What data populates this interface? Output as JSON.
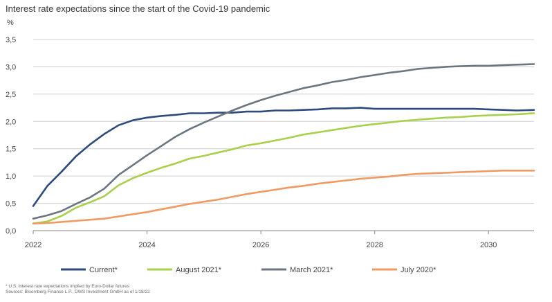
{
  "chart_data": {
    "type": "line",
    "title": "Interest rate expectations since the start of the Covid-19 pandemic",
    "ylabel": "%",
    "xlabel": "",
    "ylim": [
      0,
      3.5
    ],
    "xlim": [
      2022,
      2030.8
    ],
    "grid": true,
    "legend_position": "bottom",
    "y_ticks": [
      "0,0",
      "0,5",
      "1,0",
      "1,5",
      "2,0",
      "2,5",
      "3,0",
      "3,5"
    ],
    "x_ticks": [
      "2022",
      "2024",
      "2026",
      "2028",
      "2030"
    ],
    "series": [
      {
        "name": "Current*",
        "color": "#2e4a7d",
        "x": [
          2022,
          2022.25,
          2022.5,
          2022.75,
          2023,
          2023.25,
          2023.5,
          2023.75,
          2024,
          2024.25,
          2024.5,
          2024.75,
          2025,
          2025.25,
          2025.5,
          2025.75,
          2026,
          2026.25,
          2026.5,
          2026.75,
          2027,
          2027.25,
          2027.5,
          2027.75,
          2028,
          2028.25,
          2028.5,
          2028.75,
          2029,
          2029.25,
          2029.5,
          2029.75,
          2030,
          2030.25,
          2030.5,
          2030.8
        ],
        "values": [
          0.45,
          0.82,
          1.08,
          1.36,
          1.58,
          1.77,
          1.93,
          2.02,
          2.07,
          2.1,
          2.12,
          2.15,
          2.15,
          2.16,
          2.16,
          2.18,
          2.18,
          2.2,
          2.2,
          2.21,
          2.22,
          2.24,
          2.24,
          2.25,
          2.23,
          2.23,
          2.23,
          2.23,
          2.23,
          2.23,
          2.23,
          2.23,
          2.22,
          2.21,
          2.2,
          2.21
        ]
      },
      {
        "name": "August 2021*",
        "color": "#a8d04a",
        "x": [
          2022,
          2022.25,
          2022.5,
          2022.75,
          2023,
          2023.25,
          2023.5,
          2023.75,
          2024,
          2024.25,
          2024.5,
          2024.75,
          2025,
          2025.25,
          2025.5,
          2025.75,
          2026,
          2026.25,
          2026.5,
          2026.75,
          2027,
          2027.25,
          2027.5,
          2027.75,
          2028,
          2028.25,
          2028.5,
          2028.75,
          2029,
          2029.25,
          2029.5,
          2029.75,
          2030,
          2030.25,
          2030.5,
          2030.8
        ],
        "values": [
          0.13,
          0.17,
          0.27,
          0.42,
          0.52,
          0.63,
          0.83,
          0.96,
          1.06,
          1.15,
          1.23,
          1.32,
          1.37,
          1.43,
          1.49,
          1.56,
          1.6,
          1.65,
          1.7,
          1.76,
          1.8,
          1.84,
          1.88,
          1.92,
          1.95,
          1.98,
          2.01,
          2.03,
          2.05,
          2.07,
          2.08,
          2.1,
          2.11,
          2.12,
          2.13,
          2.15
        ]
      },
      {
        "name": "March 2021*",
        "color": "#6b7680",
        "x": [
          2022,
          2022.25,
          2022.5,
          2022.75,
          2023,
          2023.25,
          2023.5,
          2023.75,
          2024,
          2024.25,
          2024.5,
          2024.75,
          2025,
          2025.25,
          2025.5,
          2025.75,
          2026,
          2026.25,
          2026.5,
          2026.75,
          2027,
          2027.25,
          2027.5,
          2027.75,
          2028,
          2028.25,
          2028.5,
          2028.75,
          2029,
          2029.25,
          2029.5,
          2029.75,
          2030,
          2030.25,
          2030.5,
          2030.8
        ],
        "values": [
          0.22,
          0.28,
          0.36,
          0.49,
          0.61,
          0.77,
          1.02,
          1.2,
          1.38,
          1.55,
          1.72,
          1.86,
          1.98,
          2.09,
          2.2,
          2.3,
          2.39,
          2.47,
          2.54,
          2.61,
          2.66,
          2.72,
          2.76,
          2.81,
          2.85,
          2.89,
          2.92,
          2.96,
          2.98,
          3.0,
          3.01,
          3.02,
          3.02,
          3.03,
          3.04,
          3.05
        ]
      },
      {
        "name": "July 2020*",
        "color": "#f09a63",
        "x": [
          2022,
          2022.25,
          2022.5,
          2022.75,
          2023,
          2023.25,
          2023.5,
          2023.75,
          2024,
          2024.25,
          2024.5,
          2024.75,
          2025,
          2025.25,
          2025.5,
          2025.75,
          2026,
          2026.25,
          2026.5,
          2026.75,
          2027,
          2027.25,
          2027.5,
          2027.75,
          2028,
          2028.25,
          2028.5,
          2028.75,
          2029,
          2029.25,
          2029.5,
          2029.75,
          2030,
          2030.25,
          2030.5,
          2030.8
        ],
        "values": [
          0.13,
          0.14,
          0.16,
          0.18,
          0.2,
          0.22,
          0.26,
          0.3,
          0.34,
          0.39,
          0.44,
          0.49,
          0.53,
          0.57,
          0.62,
          0.67,
          0.71,
          0.75,
          0.79,
          0.82,
          0.86,
          0.89,
          0.92,
          0.95,
          0.97,
          0.99,
          1.02,
          1.04,
          1.05,
          1.06,
          1.07,
          1.08,
          1.09,
          1.1,
          1.1,
          1.1
        ]
      }
    ]
  },
  "footnote": {
    "line1": "* U.S. interest rate expectations implied by Euro-Dollar futures",
    "line2": "Sources: Bloomberg Finance L.P., DWS Investment GmbH as of 1/18/22"
  }
}
